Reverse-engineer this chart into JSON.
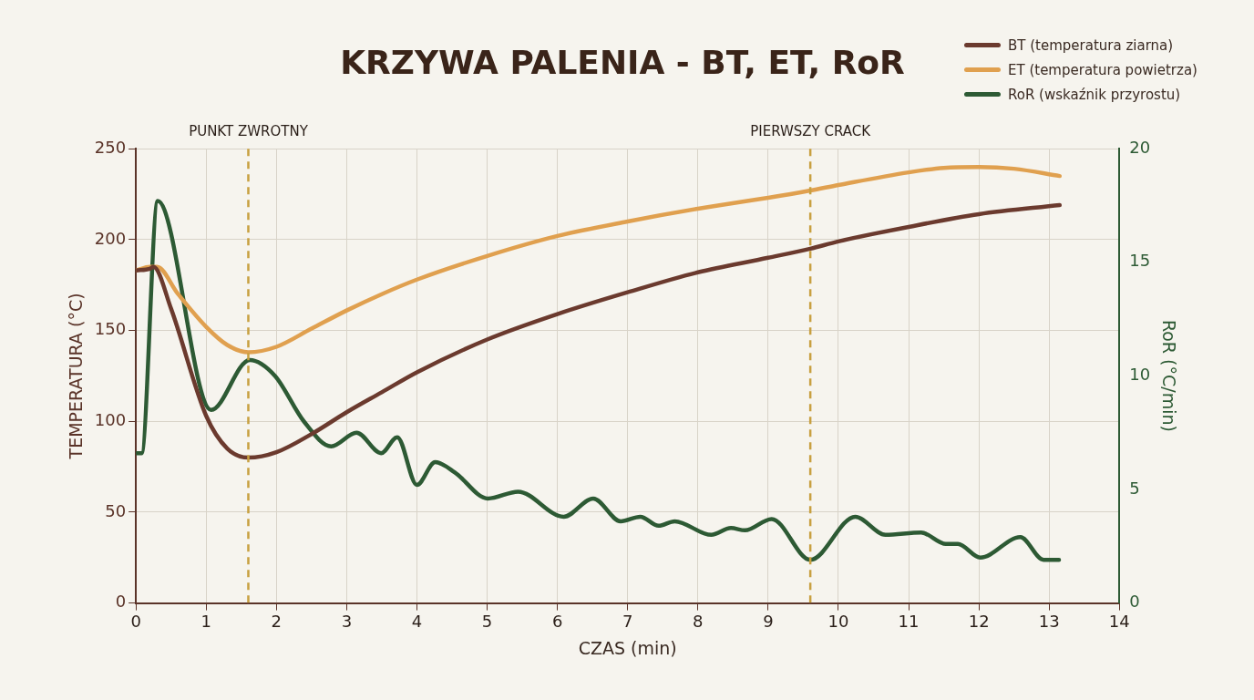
{
  "chart_data": {
    "type": "line",
    "title": "KRZYWA PALENIA - BT, ET, RoR",
    "xlabel": "CZAS (min)",
    "ylabel": "TEMPERATURA (°C)",
    "y2label": "RoR (°C/min)",
    "xlim": [
      0,
      14
    ],
    "xticks": [
      0,
      1,
      2,
      3,
      4,
      5,
      6,
      7,
      8,
      9,
      10,
      11,
      12,
      13,
      14
    ],
    "ylim": [
      0,
      250
    ],
    "yticks": [
      0,
      50,
      100,
      150,
      200,
      250
    ],
    "y2lim": [
      0,
      20
    ],
    "y2ticks": [
      0,
      5,
      10,
      15,
      20
    ],
    "grid": true,
    "legend": "top right",
    "marker": "none",
    "line_style": "solid",
    "series": [
      {
        "name": "BT (temperatura ziarna)",
        "color": "#6b3a2e",
        "x": [
          0,
          0.2,
          0.25,
          0.5,
          1,
          1.3,
          1.6,
          2,
          2.5,
          3,
          3.5,
          4,
          5,
          6,
          7,
          8,
          9,
          9.6,
          10,
          11,
          12,
          13.15
        ],
        "values": [
          183,
          184,
          185,
          162,
          103,
          85,
          80,
          83,
          93,
          105,
          116,
          127,
          145,
          159,
          171,
          182,
          190,
          195,
          199,
          207,
          214,
          219
        ]
      },
      {
        "name": "ET (temperatura powietrza)",
        "color": "#e0a04f",
        "x": [
          0,
          0.2,
          0.3,
          0.6,
          1,
          1.3,
          1.6,
          2,
          2.5,
          3,
          3.5,
          4,
          5,
          6,
          7,
          8,
          9,
          9.6,
          10,
          11,
          11.5,
          12,
          12.5,
          13.15
        ],
        "values": [
          183,
          185,
          185,
          170,
          152,
          142,
          138,
          141,
          151,
          161,
          170,
          178,
          191,
          202,
          210,
          217,
          223,
          227,
          230,
          237,
          239.5,
          240,
          239,
          235
        ]
      },
      {
        "name": "RoR (wskaźnik przyrostu)",
        "color": "#2d5a34",
        "axis": "y2",
        "x": [
          0,
          0.08,
          0.31,
          1.07,
          1.62,
          1.98,
          2.39,
          2.78,
          3.14,
          3.49,
          3.72,
          4.0,
          4.26,
          4.54,
          5.01,
          5.44,
          6.09,
          6.51,
          6.9,
          7.18,
          7.44,
          7.67,
          8.19,
          8.47,
          8.67,
          9.05,
          9.6,
          10.24,
          10.67,
          11.18,
          11.53,
          11.7,
          12.02,
          12.59,
          12.92,
          13.14
        ],
        "values": [
          6.6,
          6.6,
          17.7,
          8.5,
          10.7,
          10.0,
          8.0,
          6.9,
          7.5,
          6.6,
          7.3,
          5.2,
          6.2,
          5.75,
          4.6,
          4.9,
          3.8,
          4.6,
          3.6,
          3.8,
          3.4,
          3.6,
          3.0,
          3.3,
          3.2,
          3.7,
          1.9,
          3.8,
          3.0,
          3.1,
          2.6,
          2.6,
          2.0,
          2.9,
          1.9,
          1.9
        ]
      }
    ],
    "ref_lines": [
      {
        "axis": "x",
        "value": 1.6,
        "label": "PUNKT ZWROTNY",
        "color": "#c8a040",
        "line_style": "dashed"
      },
      {
        "axis": "x",
        "value": 9.6,
        "label": "PIERWSZY CRACK",
        "color": "#c8a040",
        "line_style": "dashed"
      }
    ]
  }
}
